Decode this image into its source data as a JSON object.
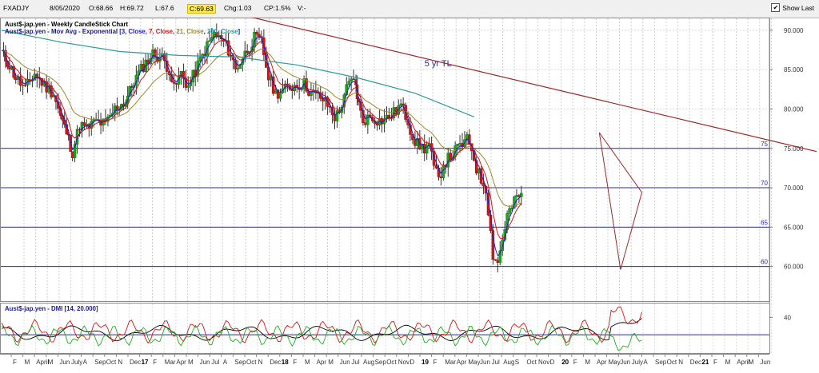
{
  "toolbar": {
    "symbol": "FXADJY",
    "date": "8/05/2020",
    "open": "O:68.66",
    "high": "H:69.72",
    "low": "L:67.6",
    "close": "C:69.63",
    "change": "Chg:1.03",
    "change_pct": "CP:1.5%",
    "volume": "V:-",
    "show_last_label": "Show Last",
    "show_last_checked": "✔"
  },
  "chart_data": [
    {
      "type": "candlestick",
      "title": "Aust$-jap.yen - Weekly CandleStick Chart",
      "indicator_prefix": "Aust$-jap.yen - Mov Avg - Exponential [",
      "indicator_params": [
        {
          "text": "3, Close",
          "color": "#2020c0"
        },
        {
          "text": "7, Close",
          "color": "#d01818"
        },
        {
          "text": "21, Close",
          "color": "#9c8a2a"
        },
        {
          "text": "200, Close",
          "color": "#2e9a9a"
        }
      ],
      "indicator_suffix": "]",
      "ylim": [
        55.6,
        90.8
      ],
      "yticks": [
        60,
        65,
        70,
        75,
        80,
        85,
        90
      ],
      "ytick_labels": [
        "60.000",
        "65.000",
        "70.000",
        "75.000",
        "80.000",
        "85.000",
        "90.000"
      ],
      "horizontal_levels": [
        {
          "value": 75,
          "label": "75"
        },
        {
          "value": 70,
          "label": "70"
        },
        {
          "value": 65,
          "label": "65"
        },
        {
          "value": 60,
          "label": "60"
        }
      ],
      "annotation": "5 yr TL",
      "trendline": {
        "start": {
          "x": 2016.85,
          "y": 92.6
        },
        "end": {
          "x": 2021.9,
          "y": 74.6
        }
      },
      "triangle": [
        {
          "x": 2020.06,
          "y": 77.0
        },
        {
          "x": 2020.42,
          "y": 69.4
        },
        {
          "x": 2020.24,
          "y": 59.6
        }
      ],
      "price_path": [
        [
          2015.0,
          87.2
        ],
        [
          2015.05,
          86.0
        ],
        [
          2015.12,
          84.0
        ],
        [
          2015.2,
          82.5
        ],
        [
          2015.28,
          84.5
        ],
        [
          2015.36,
          83.0
        ],
        [
          2015.44,
          82.0
        ],
        [
          2015.5,
          79.0
        ],
        [
          2015.55,
          77.0
        ],
        [
          2015.6,
          74.5
        ],
        [
          2015.66,
          78.0
        ],
        [
          2015.72,
          77.5
        ],
        [
          2015.8,
          78.5
        ],
        [
          2015.88,
          78.0
        ],
        [
          2015.96,
          80.0
        ],
        [
          2016.05,
          81.0
        ],
        [
          2016.12,
          83.5
        ],
        [
          2016.2,
          85.5
        ],
        [
          2016.28,
          87.0
        ],
        [
          2016.36,
          86.5
        ],
        [
          2016.42,
          85.0
        ],
        [
          2016.46,
          82.5
        ],
        [
          2016.52,
          84.5
        ],
        [
          2016.58,
          82.8
        ],
        [
          2016.66,
          85.5
        ],
        [
          2016.74,
          88.0
        ],
        [
          2016.8,
          89.5
        ],
        [
          2016.88,
          88.5
        ],
        [
          2016.94,
          87.0
        ],
        [
          2016.98,
          85.0
        ],
        [
          2017.02,
          86.0
        ],
        [
          2017.08,
          87.5
        ],
        [
          2017.14,
          89.0
        ],
        [
          2017.2,
          88.5
        ],
        [
          2017.26,
          84.0
        ],
        [
          2017.32,
          82.0
        ],
        [
          2017.4,
          82.5
        ],
        [
          2017.48,
          83.0
        ],
        [
          2017.56,
          83.2
        ],
        [
          2017.62,
          82.0
        ],
        [
          2017.7,
          81.5
        ],
        [
          2017.76,
          80.5
        ],
        [
          2017.82,
          79.0
        ],
        [
          2017.86,
          79.5
        ],
        [
          2017.9,
          82.0
        ],
        [
          2017.96,
          83.5
        ],
        [
          2018.0,
          83.0
        ],
        [
          2018.02,
          80.5
        ],
        [
          2018.06,
          78.5
        ],
        [
          2018.12,
          79.0
        ],
        [
          2018.2,
          78.5
        ],
        [
          2018.26,
          78.8
        ],
        [
          2018.32,
          79.5
        ],
        [
          2018.38,
          80.5
        ],
        [
          2018.44,
          78.5
        ],
        [
          2018.48,
          76.5
        ],
        [
          2018.52,
          75.5
        ],
        [
          2018.58,
          75.0
        ],
        [
          2018.62,
          75.5
        ],
        [
          2018.66,
          72.5
        ],
        [
          2018.7,
          71.0
        ],
        [
          2018.74,
          73.0
        ],
        [
          2018.8,
          74.0
        ],
        [
          2018.86,
          75.0
        ],
        [
          2018.9,
          75.5
        ],
        [
          2018.94,
          76.0
        ],
        [
          2018.98,
          75.0
        ],
        [
          2019.02,
          72.5
        ],
        [
          2019.06,
          71.0
        ],
        [
          2019.1,
          70.0
        ],
        [
          2019.16,
          61.5
        ],
        [
          2019.2,
          60.5
        ],
        [
          2019.24,
          63.5
        ],
        [
          2019.28,
          66.5
        ],
        [
          2019.32,
          67.5
        ],
        [
          2019.36,
          68.8
        ],
        [
          2019.4,
          69.3
        ]
      ],
      "ema_slow_path": [
        [
          2015.0,
          90.0
        ],
        [
          2015.5,
          88.5
        ],
        [
          2016.0,
          87.3
        ],
        [
          2016.5,
          86.8
        ],
        [
          2017.0,
          86.6
        ],
        [
          2017.5,
          85.6
        ],
        [
          2018.0,
          84.0
        ],
        [
          2018.5,
          82.0
        ],
        [
          2019.0,
          79.0
        ]
      ]
    },
    {
      "type": "line",
      "title": "Aust$-jap.yen - DMI [14, 20.000]",
      "ylim": [
        0,
        55
      ],
      "reference_level": 20,
      "ytick_labels": [
        "40"
      ],
      "yticks": [
        40
      ],
      "series": [
        {
          "color": "#000000"
        },
        {
          "color": "#d01818"
        },
        {
          "color": "#22aa22"
        },
        {
          "color": "#2a2a8c"
        }
      ]
    }
  ],
  "xaxis": {
    "labels": [
      "F",
      "M",
      "April",
      "M",
      "Jun",
      "July",
      "A",
      "Sep",
      "Oct",
      "N",
      "Dec",
      "17",
      "F",
      "Mar",
      "Apr",
      "M",
      "Jun",
      "Jul",
      "A",
      "Sep",
      "Oct",
      "N",
      "Dec",
      "18",
      "F",
      "M",
      "Apr",
      "M",
      "Jun",
      "Jul",
      "Aug",
      "Sep",
      "Oct",
      "Nov",
      "D",
      "19",
      "F",
      "Mar",
      "Apr",
      "May",
      "Jun",
      "Jul",
      "Aug",
      "S",
      "Oct",
      "Nov",
      "D",
      "20",
      "F",
      "M",
      "Apr",
      "May",
      "Jun",
      "July",
      "A",
      "Sep",
      "Oct",
      "N",
      "Dec",
      "21",
      "F",
      "M",
      "April",
      "M",
      "Jun"
    ],
    "year_labels": [
      "17",
      "18",
      "19",
      "20",
      "21"
    ]
  }
}
